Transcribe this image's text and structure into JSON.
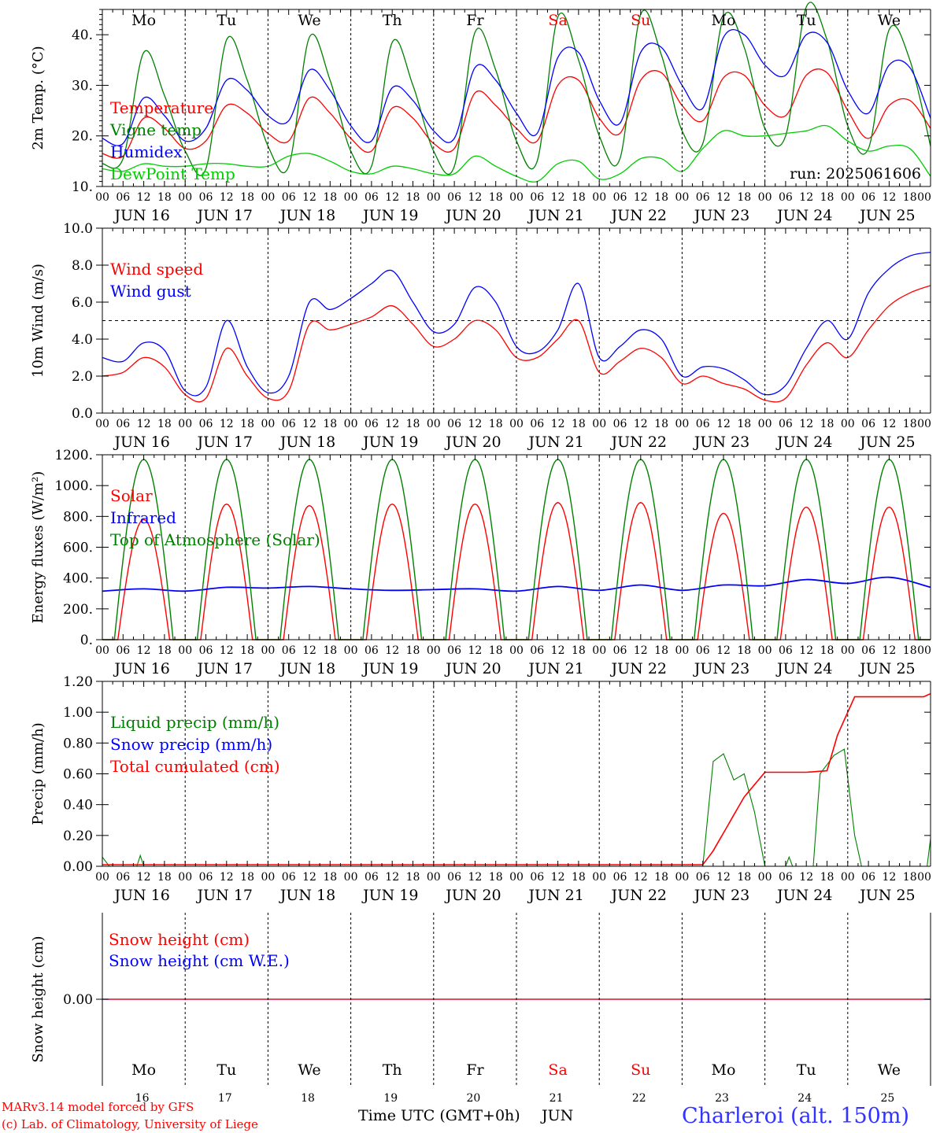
{
  "days": {
    "x_ticks": [
      "00",
      "06",
      "12",
      "18"
    ],
    "final_tick": "00",
    "dates": [
      "JUN 16",
      "JUN 17",
      "JUN 18",
      "JUN 19",
      "JUN 20",
      "JUN 21",
      "JUN 22",
      "JUN 23",
      "JUN 24",
      "JUN 25"
    ],
    "weekdays": [
      "Mo",
      "Tu",
      "We",
      "Th",
      "Fr",
      "Sa",
      "Su",
      "Mo",
      "Tu",
      "We"
    ],
    "day_numbers": [
      "16",
      "17",
      "18",
      "19",
      "20",
      "21",
      "22",
      "23",
      "24",
      "25"
    ],
    "weekend_indices": [
      5,
      6
    ]
  },
  "colors": {
    "red": "#ff0000",
    "green": "#008000",
    "blue": "#0000ff",
    "lightgreen": "#00cc00",
    "frame": "#000000",
    "title_blue": "#3333ff"
  },
  "footer": {
    "model_line": "MARv3.14 model forced by GFS",
    "lab_line": "(c) Lab. of Climatology, University of Liege",
    "time_label": "Time UTC (GMT+0h)",
    "month_label": "JUN",
    "station": "Charleroi (alt. 150m)"
  },
  "chart_data": [
    {
      "type": "line",
      "ylabel": "2m Temp. (°C)",
      "ylim": [
        10,
        45
      ],
      "yticks": [
        10,
        20,
        30,
        40
      ],
      "ytick_labels": [
        "10.",
        "20.",
        "30.",
        "40."
      ],
      "annotation": "run: 2025061606",
      "x_hours": [
        0,
        6,
        12,
        18,
        24,
        30,
        36,
        42,
        48,
        54,
        60,
        66,
        72,
        78,
        84,
        90,
        96,
        102,
        108,
        114,
        120,
        126,
        132,
        138,
        144,
        150,
        156,
        162,
        168,
        174,
        180,
        186,
        192,
        198,
        204,
        210,
        216,
        222,
        228,
        234,
        240
      ],
      "series": [
        {
          "name": "Temperature",
          "color": "red",
          "values": [
            16.5,
            16.0,
            23.5,
            21.5,
            17.5,
            19.0,
            26.0,
            24.5,
            20.5,
            19.0,
            27.5,
            24.5,
            19.5,
            17.0,
            25.5,
            23.5,
            18.5,
            17.5,
            28.5,
            26.0,
            21.5,
            19.0,
            30.0,
            31.0,
            23.5,
            20.5,
            31.0,
            32.5,
            26.0,
            23.0,
            31.5,
            32.0,
            26.0,
            24.0,
            32.0,
            32.5,
            25.0,
            19.5,
            26.0,
            27.0,
            21.5
          ]
        },
        {
          "name": "Vigne temp",
          "color": "green",
          "values": [
            14.5,
            15.5,
            36.5,
            28.0,
            17.0,
            13.5,
            39.0,
            31.0,
            18.0,
            14.0,
            39.5,
            31.0,
            17.0,
            14.0,
            38.5,
            30.0,
            17.0,
            14.0,
            40.5,
            33.0,
            19.0,
            15.0,
            43.5,
            35.0,
            20.0,
            15.5,
            44.0,
            36.0,
            21.0,
            18.5,
            43.5,
            37.5,
            21.5,
            20.0,
            45.5,
            39.0,
            22.0,
            17.5,
            41.0,
            35.0,
            18.0
          ]
        },
        {
          "name": "Humidex",
          "color": "blue",
          "values": [
            19.5,
            18.5,
            27.5,
            24.0,
            19.0,
            21.5,
            31.0,
            29.0,
            24.0,
            23.0,
            33.0,
            29.0,
            22.0,
            19.0,
            29.5,
            27.0,
            21.0,
            19.5,
            33.5,
            31.0,
            24.5,
            20.5,
            35.5,
            36.5,
            27.0,
            22.5,
            36.5,
            37.5,
            30.0,
            25.5,
            39.5,
            40.0,
            34.0,
            32.0,
            40.0,
            38.5,
            29.0,
            24.5,
            34.0,
            33.5,
            23.5
          ]
        },
        {
          "name": "DewPoint Temp",
          "color": "lightgreen",
          "values": [
            13.5,
            13.0,
            14.5,
            14.0,
            14.0,
            14.5,
            14.5,
            14.0,
            14.0,
            16.0,
            16.5,
            15.0,
            13.0,
            12.5,
            14.0,
            13.5,
            12.5,
            12.5,
            16.0,
            14.0,
            12.0,
            11.0,
            14.5,
            15.0,
            11.5,
            12.5,
            15.5,
            15.5,
            13.0,
            17.5,
            21.0,
            20.0,
            20.0,
            20.5,
            21.0,
            22.0,
            19.0,
            17.0,
            18.0,
            17.5,
            12.0
          ]
        }
      ]
    },
    {
      "type": "line",
      "ylabel": "10m Wind (m/s)",
      "ylim": [
        0,
        10
      ],
      "yticks": [
        0,
        2,
        4,
        6,
        8,
        10
      ],
      "ytick_labels": [
        "0.0",
        "2.0",
        "4.0",
        "6.0",
        "8.0",
        "10.0"
      ],
      "reference_line": 5,
      "x_hours": [
        0,
        6,
        12,
        18,
        24,
        30,
        36,
        42,
        48,
        54,
        60,
        66,
        72,
        78,
        84,
        90,
        96,
        102,
        108,
        114,
        120,
        126,
        132,
        138,
        144,
        150,
        156,
        162,
        168,
        174,
        180,
        186,
        192,
        198,
        204,
        210,
        216,
        222,
        228,
        234,
        240
      ],
      "series": [
        {
          "name": "Wind speed",
          "color": "red",
          "values": [
            2.0,
            2.2,
            3.0,
            2.5,
            1.0,
            0.8,
            3.5,
            2.0,
            0.8,
            1.2,
            4.8,
            4.5,
            4.8,
            5.2,
            5.8,
            4.8,
            3.6,
            4.0,
            5.0,
            4.5,
            3.0,
            3.0,
            4.0,
            5.0,
            2.2,
            2.8,
            3.5,
            3.0,
            1.6,
            2.0,
            1.6,
            1.3,
            0.7,
            0.8,
            2.6,
            3.8,
            3.0,
            4.5,
            5.8,
            6.5,
            6.9
          ]
        },
        {
          "name": "Wind gust",
          "color": "blue",
          "values": [
            3.0,
            2.8,
            3.8,
            3.4,
            1.2,
            1.4,
            5.0,
            2.5,
            1.1,
            2.0,
            6.0,
            5.6,
            6.2,
            7.0,
            7.7,
            6.0,
            4.4,
            4.8,
            6.8,
            6.0,
            3.6,
            3.3,
            4.5,
            7.0,
            3.0,
            3.6,
            4.5,
            4.0,
            2.0,
            2.5,
            2.4,
            1.8,
            1.0,
            1.5,
            3.5,
            5.0,
            4.0,
            6.5,
            7.8,
            8.5,
            8.7
          ]
        }
      ]
    },
    {
      "type": "line",
      "ylabel": "Energy fluxes (W/m²)",
      "ylim": [
        0,
        1200
      ],
      "yticks": [
        0,
        200,
        400,
        600,
        800,
        1000,
        1200
      ],
      "ytick_labels": [
        "0.",
        "200.",
        "400.",
        "600.",
        "800.",
        "1000.",
        "1200."
      ],
      "daily_peaks": {
        "Solar": [
          780,
          880,
          870,
          880,
          880,
          890,
          890,
          820,
          860,
          860
        ],
        "Top of Atmosphere (Solar)": [
          1170,
          1170,
          1170,
          1170,
          1170,
          1170,
          1170,
          1170,
          1170,
          1170
        ]
      },
      "series": [
        {
          "name": "Solar",
          "color": "red",
          "values": [
            0,
            780,
            0,
            880,
            0,
            870,
            0,
            880,
            0,
            880,
            0,
            890,
            0,
            890,
            0,
            820,
            0,
            860,
            0,
            860,
            0
          ]
        },
        {
          "name": "Infrared",
          "color": "blue",
          "values": [
            315,
            330,
            315,
            340,
            335,
            345,
            330,
            320,
            325,
            330,
            315,
            345,
            320,
            355,
            320,
            355,
            350,
            390,
            365,
            405,
            340
          ]
        },
        {
          "name": "Top of Atmosphere (Solar)",
          "color": "green",
          "values": [
            0,
            1170,
            0,
            1170,
            0,
            1170,
            0,
            1170,
            0,
            1170,
            0,
            1170,
            0,
            1170,
            0,
            1170,
            0,
            1170,
            0,
            1170,
            0
          ]
        }
      ]
    },
    {
      "type": "line",
      "ylabel": "Precip (mm/h)",
      "ylim": [
        0,
        1.2
      ],
      "yticks": [
        0,
        0.2,
        0.4,
        0.6,
        0.8,
        1.0,
        1.2
      ],
      "ytick_labels": [
        "0.00",
        "0.20",
        "0.40",
        "0.60",
        "0.80",
        "1.00",
        "1.20"
      ],
      "series": [
        {
          "name": "Liquid precip (mm/h)",
          "color": "green",
          "values": [
            [
              0,
              0.06
            ],
            [
              2,
              0
            ],
            [
              10,
              0
            ],
            [
              11,
              0.07
            ],
            [
              12,
              0
            ],
            [
              168,
              0
            ],
            [
              174,
              0
            ],
            [
              177,
              0.68
            ],
            [
              180,
              0.73
            ],
            [
              183,
              0.56
            ],
            [
              186,
              0.6
            ],
            [
              189,
              0.35
            ],
            [
              192,
              0
            ],
            [
              198,
              0
            ],
            [
              199,
              0.06
            ],
            [
              200,
              0
            ],
            [
              206,
              0
            ],
            [
              208,
              0.6
            ],
            [
              212,
              0.72
            ],
            [
              215,
              0.76
            ],
            [
              218,
              0.2
            ],
            [
              220,
              0
            ],
            [
              239,
              0
            ],
            [
              240,
              0.18
            ]
          ]
        },
        {
          "name": "Snow precip (mm/h)",
          "color": "blue",
          "values": [
            [
              0,
              0
            ],
            [
              240,
              0
            ]
          ]
        },
        {
          "name": "Total cumulated (cm)",
          "color": "red",
          "values": [
            [
              0,
              0.01
            ],
            [
              174,
              0.01
            ],
            [
              177,
              0.1
            ],
            [
              186,
              0.45
            ],
            [
              192,
              0.61
            ],
            [
              204,
              0.61
            ],
            [
              210,
              0.62
            ],
            [
              213,
              0.85
            ],
            [
              218,
              1.1
            ],
            [
              228,
              1.1
            ],
            [
              238,
              1.1
            ],
            [
              240,
              1.12
            ]
          ]
        }
      ]
    },
    {
      "type": "line",
      "ylabel": "Snow height (cm)",
      "ylim": [
        -1,
        1
      ],
      "yticks": [
        0
      ],
      "ytick_labels": [
        "0.00"
      ],
      "series": [
        {
          "name": "Snow height (cm)",
          "color": "red",
          "values": [
            [
              0,
              0
            ],
            [
              240,
              0
            ]
          ]
        },
        {
          "name": "Snow height (cm W.E.)",
          "color": "blue",
          "values": [
            [
              0,
              0
            ],
            [
              240,
              0
            ]
          ]
        }
      ]
    }
  ]
}
